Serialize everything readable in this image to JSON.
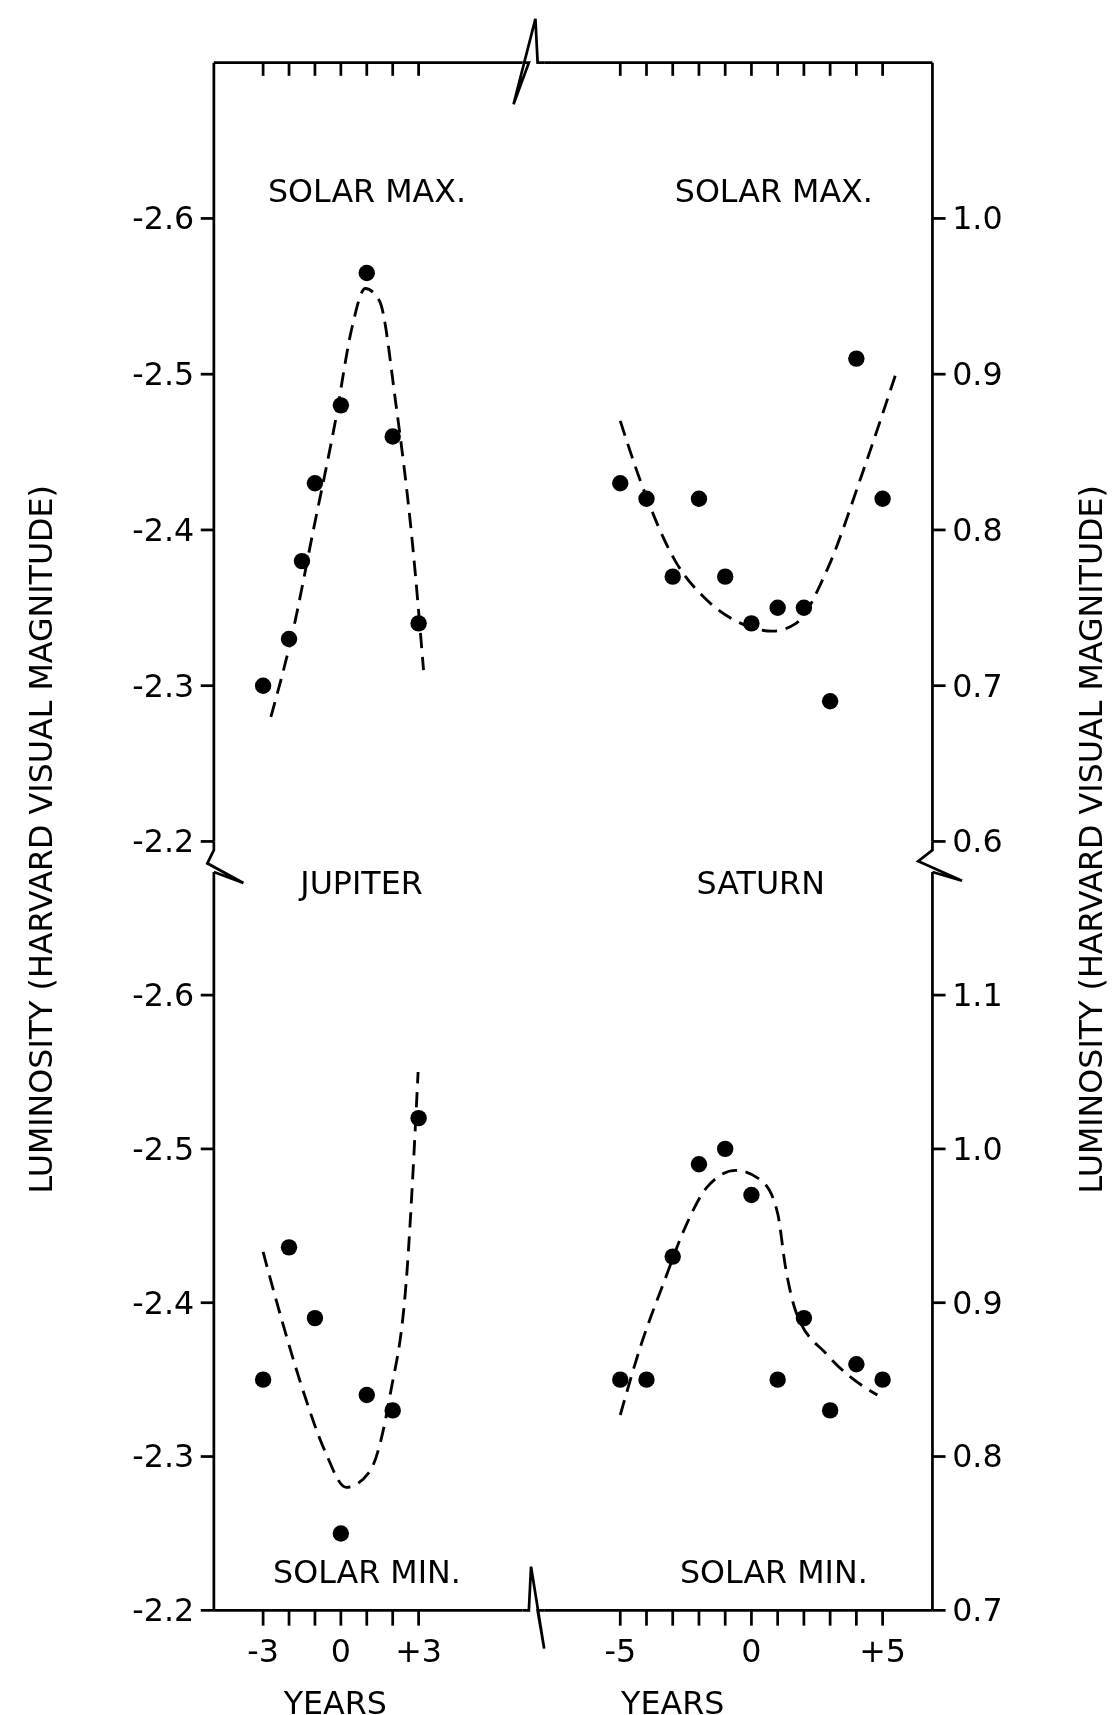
{
  "chart_data": [
    {
      "type": "scatter",
      "annotations": [
        "SOLAR MAX."
      ],
      "ylabel": "LUMINOSITY (HARVARD VISUAL MAGNITUDE)",
      "xlim": [
        -4.9,
        7
      ],
      "ylim": [
        -2.2,
        -2.7
      ],
      "yticks": [
        -2.6,
        -2.5,
        -2.4,
        -2.3,
        -2.2
      ],
      "xticks": [
        {
          "value": -3,
          "label": null
        },
        {
          "value": -2,
          "label": null
        },
        {
          "value": -1,
          "label": null
        },
        {
          "value": 0,
          "label": null
        },
        {
          "value": 1,
          "label": null
        },
        {
          "value": 2,
          "label": null
        },
        {
          "value": 3,
          "label": null
        }
      ],
      "tick_labels": "y",
      "series": [
        {
          "type": "scatter",
          "marker": "circle",
          "color": "#000000",
          "x": [
            -3,
            -2,
            -1.5,
            -1,
            0,
            1,
            2,
            3
          ],
          "values": [
            -2.3,
            -2.33,
            -2.38,
            -2.43,
            -2.48,
            -2.565,
            -2.46,
            -2.34
          ]
        },
        {
          "type": "line",
          "marker": "none",
          "color": "#000000",
          "line_style": "dashed",
          "x": [
            -2.7,
            -1.85,
            -1.06,
            -0.21,
            0.43,
            0.94,
            1.49,
            2.13,
            2.77,
            3.19
          ],
          "values": [
            -2.28,
            -2.335,
            -2.4,
            -2.47,
            -2.53,
            -2.555,
            -2.547,
            -2.48,
            -2.39,
            -2.31
          ]
        }
      ]
    },
    {
      "type": "scatter",
      "annotations": [
        "SOLAR MAX."
      ],
      "y2label": "LUMINOSITY (HARVARD VISUAL MAGNITUDE)",
      "xlim": [
        -7.9,
        6.9
      ],
      "y2lim": [
        0.6,
        1.1
      ],
      "y2ticks": [
        {
          "value": 1,
          "label": "1.0"
        },
        0.9,
        0.8,
        0.7,
        0.6
      ],
      "xticks": [
        {
          "value": -5,
          "label": null
        },
        {
          "value": -4,
          "label": null
        },
        {
          "value": -3,
          "label": null
        },
        {
          "value": -2,
          "label": null
        },
        {
          "value": -1,
          "label": null
        },
        {
          "value": 0,
          "label": null
        },
        {
          "value": 1,
          "label": null
        },
        {
          "value": 2,
          "label": null
        },
        {
          "value": 3,
          "label": null
        },
        {
          "value": 4,
          "label": null
        },
        {
          "value": 5,
          "label": null
        }
      ],
      "tick_labels": "y",
      "series": [
        {
          "type": "scatter",
          "marker": "circle",
          "axis": "y2",
          "color": "#000000",
          "x": [
            -5,
            -4,
            -3,
            -2,
            -1,
            0,
            1,
            2,
            3,
            4,
            5
          ],
          "values": [
            0.83,
            0.82,
            0.77,
            0.82,
            0.77,
            0.74,
            0.75,
            0.75,
            0.69,
            0.91,
            0.82
          ]
        },
        {
          "type": "line",
          "marker": "none",
          "axis": "y2",
          "color": "#000000",
          "line_style": "dashed",
          "x": [
            -5,
            -4.2,
            -2.9,
            -1.7,
            -0.4,
            0.8,
            1.7,
            2.9,
            4.2,
            5.5
          ],
          "values": [
            0.87,
            0.83,
            0.78,
            0.755,
            0.74,
            0.735,
            0.74,
            0.775,
            0.835,
            0.9
          ]
        }
      ]
    },
    {
      "type": "scatter",
      "title": "JUPITER",
      "annotations": [
        "SOLAR MIN."
      ],
      "xlabel": "YEARS",
      "xlim": [
        -4.9,
        7
      ],
      "ylim": [
        -2.2,
        -2.68
      ],
      "yticks": [
        -2.6,
        -2.5,
        -2.4,
        -2.3,
        -2.2
      ],
      "xticks": [
        -3,
        {
          "value": -2,
          "label": null
        },
        {
          "value": -1,
          "label": null
        },
        0,
        {
          "value": 1,
          "label": null
        },
        {
          "value": 2,
          "label": null
        },
        {
          "value": 3,
          "label": "+3"
        }
      ],
      "series": [
        {
          "type": "scatter",
          "marker": "circle",
          "color": "#000000",
          "x": [
            -3,
            -2,
            -1,
            0,
            1,
            2,
            3
          ],
          "values": [
            -2.35,
            -2.436,
            -2.39,
            -2.25,
            -2.34,
            -2.33,
            -2.52
          ]
        },
        {
          "type": "line",
          "marker": "none",
          "color": "#000000",
          "line_style": "dashed",
          "x": [
            -3,
            -2.3,
            -1.5,
            -0.6,
            0.2,
            1.1,
            1.9,
            2.55,
            2.98
          ],
          "values": [
            -2.433,
            -2.39,
            -2.345,
            -2.303,
            -2.28,
            -2.29,
            -2.34,
            -2.42,
            -2.55
          ]
        }
      ]
    },
    {
      "type": "scatter",
      "title": "SATURN",
      "annotations": [
        "SOLAR MIN."
      ],
      "xlabel": "YEARS",
      "xlim": [
        -7.9,
        6.9
      ],
      "y2lim": [
        0.7,
        1.18
      ],
      "y2ticks": [
        1.1,
        {
          "value": 1,
          "label": "1.0"
        },
        0.9,
        0.8,
        0.7
      ],
      "xticks": [
        -5,
        {
          "value": -4,
          "label": null
        },
        {
          "value": -3,
          "label": null
        },
        {
          "value": -2,
          "label": null
        },
        {
          "value": -1,
          "label": null
        },
        0,
        {
          "value": 1,
          "label": null
        },
        {
          "value": 2,
          "label": null
        },
        {
          "value": 3,
          "label": null
        },
        {
          "value": 4,
          "label": null
        },
        {
          "value": 5,
          "label": "+5"
        }
      ],
      "series": [
        {
          "type": "scatter",
          "marker": "circle",
          "axis": "y2",
          "color": "#000000",
          "x": [
            -5,
            -4,
            -3,
            -2,
            -1,
            0,
            1,
            2,
            3,
            4,
            5
          ],
          "values": [
            0.85,
            0.85,
            0.93,
            0.99,
            1.0,
            0.97,
            0.85,
            0.89,
            0.83,
            0.86,
            0.85
          ]
        },
        {
          "type": "line",
          "marker": "none",
          "axis": "y2",
          "color": "#000000",
          "line_style": "dashed",
          "x": [
            -5,
            -4.2,
            -3.3,
            -2.5,
            -1.7,
            -0.6,
            0.4,
            1,
            1.3,
            1.7,
            2.9,
            4.6,
            4.8
          ],
          "values": [
            0.827,
            0.873,
            0.915,
            0.95,
            0.975,
            0.986,
            0.979,
            0.958,
            0.923,
            0.894,
            0.866,
            0.842,
            0.84
          ]
        }
      ]
    }
  ]
}
